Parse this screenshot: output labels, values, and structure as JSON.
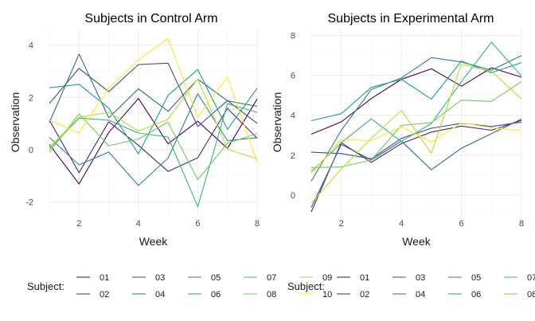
{
  "chart_data": [
    {
      "type": "line",
      "title": "Subjects in Control Arm",
      "xlabel": "Week",
      "ylabel": "Observation",
      "xlim": [
        1,
        8
      ],
      "ylim": [
        -2.5,
        4.6
      ],
      "xticks": [
        2,
        4,
        6,
        8
      ],
      "yticks": [
        -2,
        0,
        2,
        4
      ],
      "grid": true,
      "x": [
        1,
        2,
        3,
        4,
        5,
        6,
        7,
        8
      ],
      "series": [
        {
          "name": "01",
          "values": [
            0.2,
            -1.31,
            0.66,
            1.96,
            0.23,
            1.09,
            0.05,
            1.94
          ]
        },
        {
          "name": "02",
          "values": [
            1.13,
            -0.88,
            1.07,
            0.17,
            -0.83,
            -0.31,
            1.58,
            0.44
          ]
        },
        {
          "name": "03",
          "values": [
            1.77,
            3.11,
            2.22,
            3.26,
            3.31,
            0.89,
            1.88,
            1.01
          ]
        },
        {
          "name": "04",
          "values": [
            1.04,
            3.66,
            1.22,
            2.33,
            1.47,
            2.7,
            1.87,
            1.66
          ]
        },
        {
          "name": "05",
          "values": [
            0.47,
            -0.58,
            -0.09,
            -1.37,
            -0.32,
            2.14,
            0.35,
            0.46
          ]
        },
        {
          "name": "06",
          "values": [
            2.37,
            2.5,
            1.59,
            -0.16,
            2.08,
            3.07,
            0.78,
            2.35
          ]
        },
        {
          "name": "07",
          "values": [
            0.03,
            1.21,
            1.13,
            0.64,
            0.49,
            -2.18,
            1.76,
            1.43
          ]
        },
        {
          "name": "08",
          "values": [
            -0.09,
            1.37,
            0.15,
            0.41,
            1.05,
            -1.15,
            0.25,
            0.62
          ]
        },
        {
          "name": "09",
          "values": [
            0.08,
            1.24,
            1.43,
            0.71,
            1.17,
            2.71,
            0.02,
            -0.35
          ]
        },
        {
          "name": "10",
          "values": [
            1.13,
            0.64,
            2.35,
            3.44,
            4.25,
            1.24,
            2.78,
            -0.47
          ]
        }
      ]
    },
    {
      "type": "line",
      "title": "Subjects in Experimental Arm",
      "xlabel": "Week",
      "ylabel": "Observation",
      "xlim": [
        1,
        8
      ],
      "ylim": [
        -1.0,
        8.3
      ],
      "xticks": [
        2,
        4,
        6,
        8
      ],
      "yticks": [
        0,
        2,
        4,
        6,
        8
      ],
      "grid": true,
      "x": [
        1,
        2,
        3,
        4,
        5,
        6,
        7,
        8
      ],
      "series": [
        {
          "name": "01",
          "values": [
            3.05,
            3.67,
            4.84,
            5.8,
            6.33,
            5.46,
            6.38,
            5.91
          ]
        },
        {
          "name": "02",
          "values": [
            -0.84,
            2.63,
            1.64,
            2.58,
            3.16,
            3.46,
            3.25,
            3.75
          ]
        },
        {
          "name": "03",
          "values": [
            2.15,
            2.08,
            1.82,
            2.84,
            3.35,
            3.6,
            3.44,
            3.66
          ]
        },
        {
          "name": "04",
          "values": [
            -0.62,
            2.54,
            1.76,
            2.71,
            1.27,
            2.35,
            3.08,
            3.81
          ]
        },
        {
          "name": "05",
          "values": [
            0.7,
            3.25,
            5.29,
            5.87,
            6.89,
            6.67,
            6.26,
            6.99
          ]
        },
        {
          "name": "06",
          "values": [
            3.73,
            4.08,
            5.4,
            5.8,
            4.81,
            6.72,
            6.13,
            6.64
          ]
        },
        {
          "name": "07",
          "values": [
            1.18,
            2.63,
            3.82,
            2.69,
            3.59,
            5.69,
            7.66,
            5.97
          ]
        },
        {
          "name": "08",
          "values": [
            1.37,
            1.41,
            1.76,
            3.49,
            3.64,
            4.76,
            4.69,
            5.69
          ]
        },
        {
          "name": "09",
          "values": [
            -0.4,
            1.31,
            2.85,
            4.25,
            2.09,
            6.56,
            6.21,
            4.82
          ]
        },
        {
          "name": "10",
          "values": [
            1.09,
            2.79,
            2.73,
            3.42,
            2.67,
            3.62,
            3.38,
            3.23
          ]
        }
      ]
    }
  ],
  "legend": {
    "title": "Subject:",
    "placement": "bottom",
    "colors": [
      "#440154",
      "#482878",
      "#3E4A89",
      "#31688E",
      "#26828E",
      "#1F9E89",
      "#35B779",
      "#6DCD59",
      "#B4DE2C",
      "#FDE725"
    ]
  }
}
